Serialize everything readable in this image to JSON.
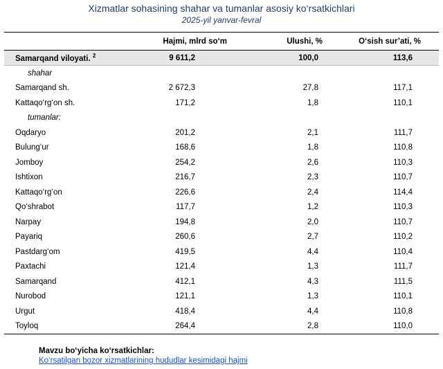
{
  "title": "Xizmatlar sohasining shahar va tumanlar asosiy ko‘rsatkichlari",
  "subtitle": "2025-yil yanvar-fevral",
  "table": {
    "headers": [
      "",
      "Hajmi, mlrd so‘m",
      "Ulushi, %",
      "O‘sish sur’ati, %"
    ],
    "total": {
      "name": "Samarqand viloyati.",
      "footnote": "2",
      "volume": "9 611,2",
      "share": "100,0",
      "growth": "113,6"
    },
    "section_city": "shahar",
    "cities": [
      {
        "name": "Samarqand sh.",
        "volume": "2 672,3",
        "share": "27,8",
        "growth": "117,1"
      },
      {
        "name": "Kattaqo‘rg‘on sh.",
        "volume": "171,2",
        "share": "1,8",
        "growth": "110,1"
      }
    ],
    "section_districts": "tumanlar:",
    "districts": [
      {
        "name": "Oqdaryo",
        "volume": "201,2",
        "share": "2,1",
        "growth": "111,7"
      },
      {
        "name": "Bulung‘ur",
        "volume": "168,6",
        "share": "1,8",
        "growth": "110,8"
      },
      {
        "name": "Jomboy",
        "volume": "254,2",
        "share": "2,6",
        "growth": "110,3"
      },
      {
        "name": "Ishtixon",
        "volume": "216,7",
        "share": "2,3",
        "growth": "110,7"
      },
      {
        "name": "Kattaqo‘rg‘on",
        "volume": "226,6",
        "share": "2,4",
        "growth": "114,4"
      },
      {
        "name": "Qo‘shrabot",
        "volume": "117,7",
        "share": "1,2",
        "growth": "110,3"
      },
      {
        "name": "Narpay",
        "volume": "194,8",
        "share": "2,0",
        "growth": "110,7"
      },
      {
        "name": "Payariq",
        "volume": "260,6",
        "share": "2,7",
        "growth": "110,2"
      },
      {
        "name": "Pastdarg‘om",
        "volume": "419,5",
        "share": "4,4",
        "growth": "110,4"
      },
      {
        "name": "Paxtachi",
        "volume": "121,4",
        "share": "1,3",
        "growth": "111,7"
      },
      {
        "name": "Samarqand",
        "volume": "412,1",
        "share": "4,3",
        "growth": "111,5"
      },
      {
        "name": "Nurobod",
        "volume": "121,1",
        "share": "1,3",
        "growth": "110,1"
      },
      {
        "name": "Urgut",
        "volume": "418,4",
        "share": "4,4",
        "growth": "110,8"
      },
      {
        "name": "Toyloq",
        "volume": "264,4",
        "share": "2,8",
        "growth": "110,0"
      }
    ]
  },
  "footer": {
    "title": "Mavzu bo‘yicha ko‘rsatkichlar:",
    "link": "Ko‘rsatilgan bozor xizmatlarining hududlar kesimidagi hajmi"
  }
}
